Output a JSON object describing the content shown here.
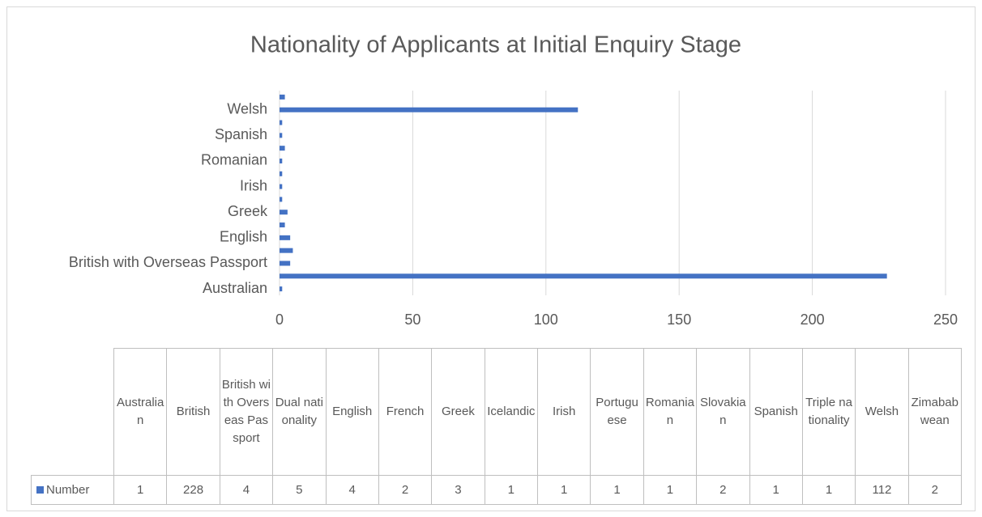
{
  "chart_data": {
    "type": "bar",
    "orientation": "horizontal",
    "title": "Nationality of Applicants at Initial Enquiry Stage",
    "categories": [
      "Australian",
      "British",
      "British with Overseas Passport",
      "Dual nationality",
      "English",
      "French",
      "Greek",
      "Icelandic",
      "Irish",
      "Portuguese",
      "Romanian",
      "Slovakian",
      "Spanish",
      "Triple nationality",
      "Welsh",
      "Zimababwean"
    ],
    "series": [
      {
        "name": "Number",
        "color": "#4472c4",
        "values": [
          1,
          228,
          4,
          5,
          4,
          2,
          3,
          1,
          1,
          1,
          1,
          2,
          1,
          1,
          112,
          2
        ]
      }
    ],
    "xlim": [
      0,
      250
    ],
    "xticks": [
      0,
      50,
      100,
      150,
      200,
      250
    ],
    "grid": true,
    "data_table": true
  }
}
